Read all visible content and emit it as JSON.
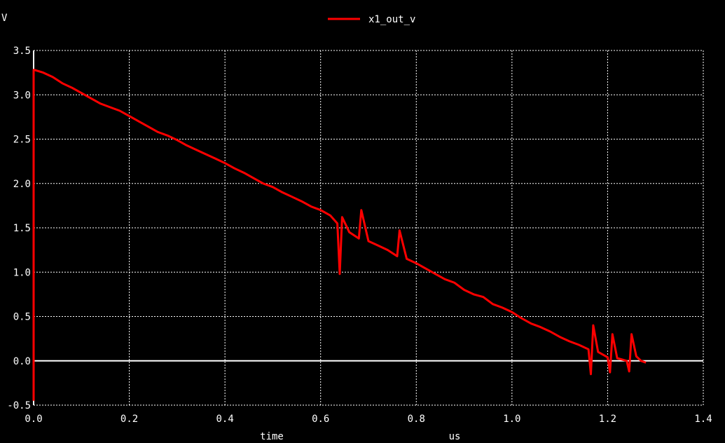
{
  "colors": {
    "background": "#000000",
    "axis": "#ffffff",
    "grid": "#ffffff",
    "trace": "#ff0000",
    "text": "#ffffff"
  },
  "chart_data": {
    "type": "line",
    "title": "",
    "ylabel": "V",
    "xlabel": "time",
    "xunit": "us",
    "xlim": [
      0.0,
      1.4
    ],
    "ylim": [
      -0.5,
      3.5
    ],
    "xticks": [
      0.0,
      0.2,
      0.4,
      0.6,
      0.8,
      1.0,
      1.2,
      1.4
    ],
    "xtick_labels": [
      "0.0",
      "0.2",
      "0.4",
      "0.6",
      "0.8",
      "1.0",
      "1.2",
      "1.4"
    ],
    "yticks": [
      -0.5,
      0.0,
      0.5,
      1.0,
      1.5,
      2.0,
      2.5,
      3.0,
      3.5
    ],
    "ytick_labels": [
      "-0.5",
      "0.0",
      "0.5",
      "1.0",
      "1.5",
      "2.0",
      "2.5",
      "3.0",
      "3.5"
    ],
    "grid": true,
    "zero_line": true,
    "legend": "top-center",
    "series": [
      {
        "name": "x1_out_v",
        "color": "#ff0000",
        "x": [
          0.0,
          0.0,
          0.002,
          0.02,
          0.04,
          0.06,
          0.08,
          0.1,
          0.12,
          0.14,
          0.16,
          0.18,
          0.2,
          0.22,
          0.24,
          0.26,
          0.28,
          0.3,
          0.32,
          0.34,
          0.36,
          0.38,
          0.4,
          0.42,
          0.44,
          0.46,
          0.48,
          0.5,
          0.52,
          0.54,
          0.56,
          0.58,
          0.6,
          0.62,
          0.635,
          0.64,
          0.645,
          0.66,
          0.68,
          0.685,
          0.7,
          0.72,
          0.74,
          0.76,
          0.765,
          0.78,
          0.8,
          0.82,
          0.84,
          0.86,
          0.88,
          0.9,
          0.92,
          0.94,
          0.96,
          0.98,
          1.0,
          1.02,
          1.04,
          1.06,
          1.08,
          1.1,
          1.12,
          1.14,
          1.16,
          1.165,
          1.17,
          1.18,
          1.2,
          1.205,
          1.21,
          1.22,
          1.24,
          1.245,
          1.25,
          1.26,
          1.27,
          1.28
        ],
        "y": [
          -0.45,
          3.28,
          3.28,
          3.25,
          3.2,
          3.13,
          3.08,
          3.02,
          2.96,
          2.9,
          2.86,
          2.82,
          2.76,
          2.7,
          2.64,
          2.58,
          2.54,
          2.49,
          2.43,
          2.38,
          2.33,
          2.28,
          2.23,
          2.17,
          2.12,
          2.06,
          2.0,
          1.96,
          1.9,
          1.85,
          1.8,
          1.74,
          1.7,
          1.64,
          1.55,
          0.98,
          1.62,
          1.45,
          1.38,
          1.7,
          1.35,
          1.3,
          1.25,
          1.18,
          1.47,
          1.15,
          1.1,
          1.04,
          0.98,
          0.92,
          0.88,
          0.8,
          0.75,
          0.72,
          0.64,
          0.6,
          0.55,
          0.48,
          0.42,
          0.38,
          0.33,
          0.27,
          0.22,
          0.18,
          0.13,
          -0.15,
          0.4,
          0.1,
          0.04,
          -0.13,
          0.3,
          0.03,
          0.0,
          -0.12,
          0.3,
          0.05,
          0.0,
          -0.02
        ]
      }
    ]
  }
}
